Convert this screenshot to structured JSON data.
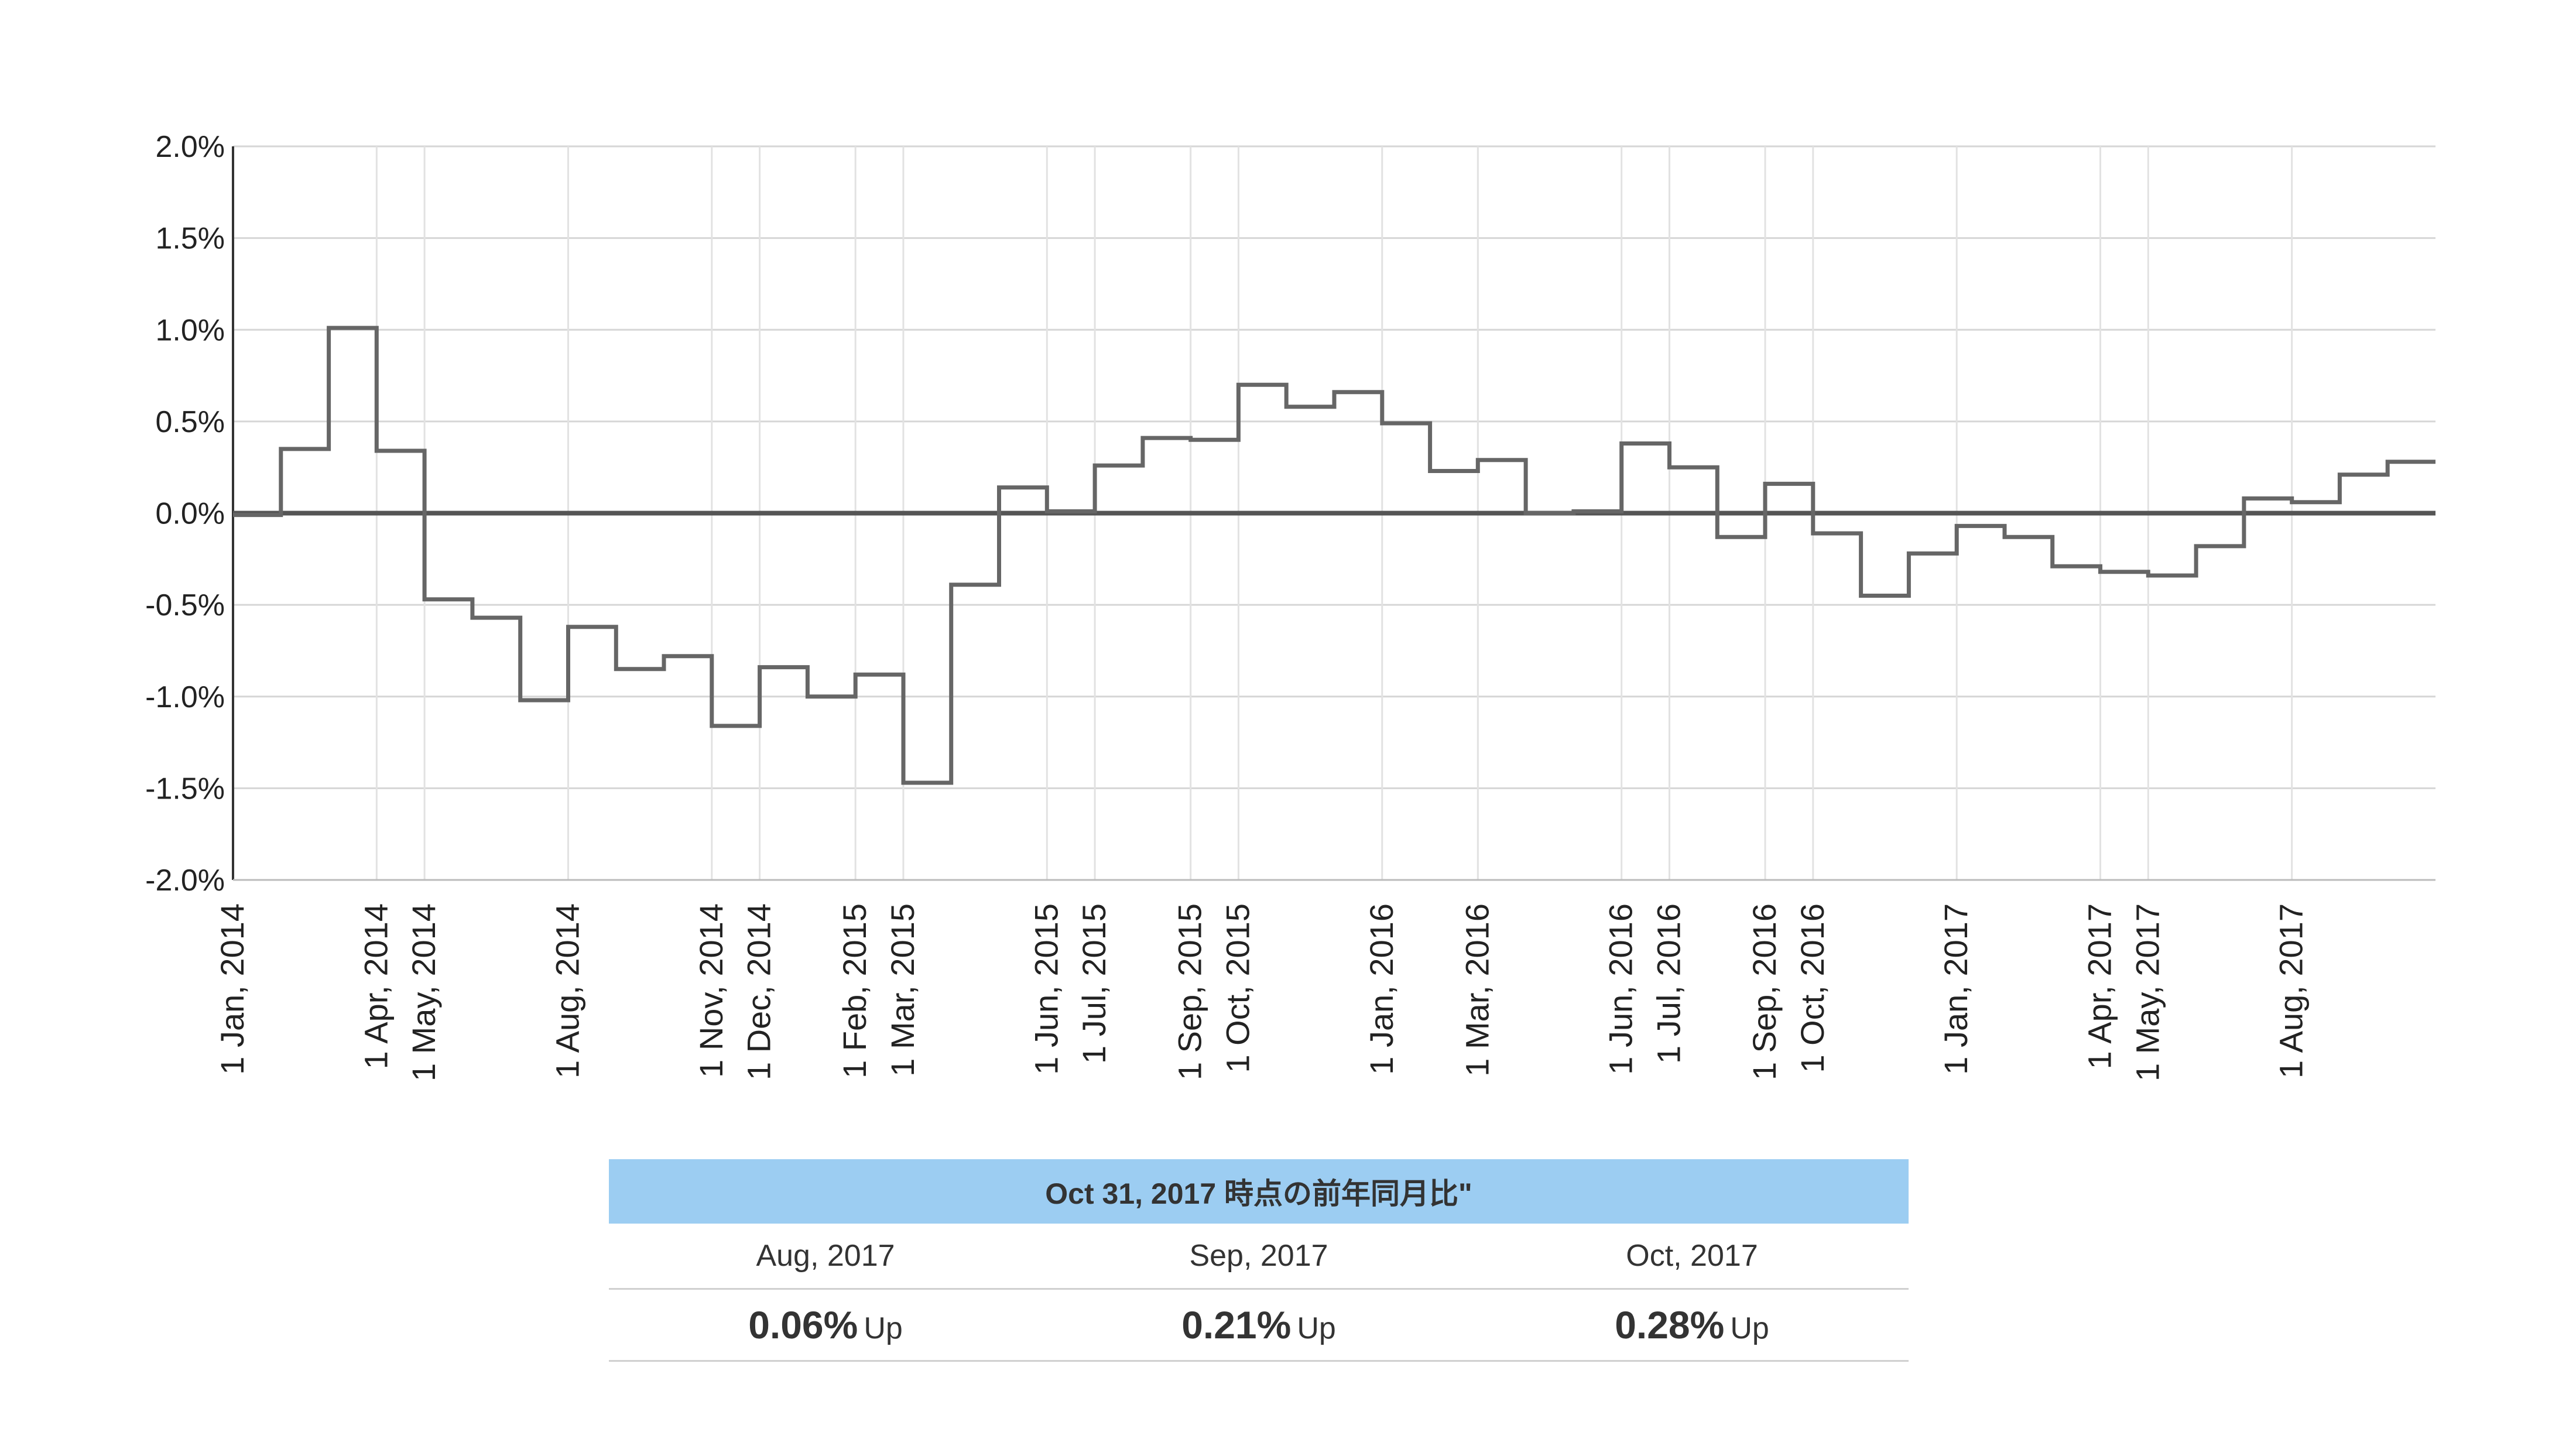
{
  "chart_data": {
    "type": "line",
    "step": true,
    "title": "",
    "xlabel": "",
    "ylabel": "",
    "ylim": [
      -2.0,
      2.0
    ],
    "xlim": [
      0,
      46
    ],
    "grid": true,
    "y_ticks": [
      2.0,
      1.5,
      1.0,
      0.5,
      0.0,
      -0.5,
      -1.0,
      -1.5,
      -2.0
    ],
    "y_tick_labels": [
      "2.0%",
      "1.5%",
      "1.0%",
      "0.5%",
      "0.0%",
      "-0.5%",
      "-1.0%",
      "-1.5%",
      "-2.0%"
    ],
    "x_ticks": [
      {
        "month_index": 0,
        "label": "1 Jan, 2014"
      },
      {
        "month_index": 3,
        "label": "1 Apr, 2014"
      },
      {
        "month_index": 4,
        "label": "1 May, 2014"
      },
      {
        "month_index": 7,
        "label": "1 Aug, 2014"
      },
      {
        "month_index": 10,
        "label": "1 Nov, 2014"
      },
      {
        "month_index": 11,
        "label": "1 Dec, 2014"
      },
      {
        "month_index": 13,
        "label": "1 Feb, 2015"
      },
      {
        "month_index": 14,
        "label": "1 Mar, 2015"
      },
      {
        "month_index": 17,
        "label": "1 Jun, 2015"
      },
      {
        "month_index": 18,
        "label": "1 Jul, 2015"
      },
      {
        "month_index": 20,
        "label": "1 Sep, 2015"
      },
      {
        "month_index": 21,
        "label": "1 Oct, 2015"
      },
      {
        "month_index": 24,
        "label": "1 Jan, 2016"
      },
      {
        "month_index": 26,
        "label": "1 Mar, 2016"
      },
      {
        "month_index": 29,
        "label": "1 Jun, 2016"
      },
      {
        "month_index": 30,
        "label": "1 Jul, 2016"
      },
      {
        "month_index": 32,
        "label": "1 Sep, 2016"
      },
      {
        "month_index": 33,
        "label": "1 Oct, 2016"
      },
      {
        "month_index": 36,
        "label": "1 Jan, 2017"
      },
      {
        "month_index": 39,
        "label": "1 Apr, 2017"
      },
      {
        "month_index": 40,
        "label": "1 May, 2017"
      },
      {
        "month_index": 43,
        "label": "1 Aug, 2017"
      }
    ],
    "reference_line": 0.0,
    "series": [
      {
        "name": "前年同月比",
        "color": "#666666",
        "values": [
          -0.01,
          0.35,
          1.01,
          0.34,
          -0.47,
          -0.57,
          -1.02,
          -0.62,
          -0.85,
          -0.78,
          -1.16,
          -0.84,
          -1.0,
          -0.88,
          -1.47,
          -0.39,
          0.14,
          0.01,
          0.26,
          0.41,
          0.4,
          0.7,
          0.58,
          0.66,
          0.49,
          0.23,
          0.29,
          0.0,
          0.01,
          0.38,
          0.25,
          -0.13,
          0.16,
          -0.11,
          -0.45,
          -0.22,
          -0.07,
          -0.13,
          -0.29,
          -0.32,
          -0.34,
          -0.18,
          0.08,
          0.06,
          0.21,
          0.28
        ]
      }
    ]
  },
  "summary": {
    "title": "Oct 31, 2017 時点の前年同月比\"",
    "accent_color": "#9ccdf2",
    "items": [
      {
        "month": "Aug, 2017",
        "value": "0.06%",
        "direction": "Up"
      },
      {
        "month": "Sep, 2017",
        "value": "0.21%",
        "direction": "Up"
      },
      {
        "month": "Oct, 2017",
        "value": "0.28%",
        "direction": "Up"
      }
    ]
  }
}
